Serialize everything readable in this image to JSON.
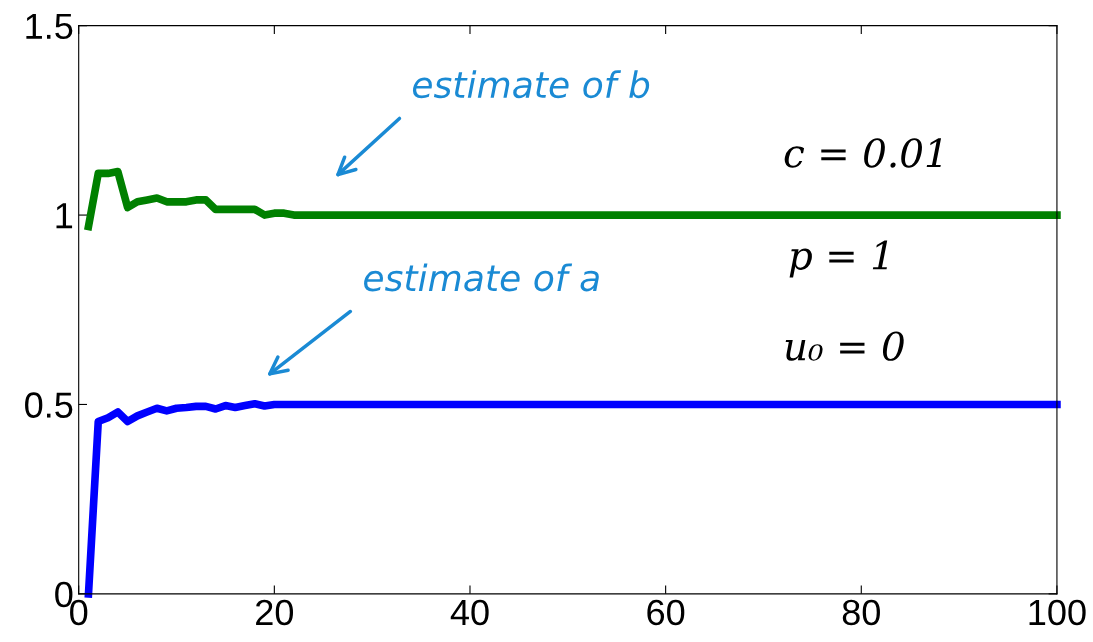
{
  "chart_data": {
    "type": "line",
    "series": [
      {
        "color": "#008000",
        "x": [
          1,
          2,
          3,
          4,
          5,
          6,
          7,
          8,
          9,
          10,
          11,
          12,
          13,
          14,
          15,
          16,
          17,
          18,
          19,
          20,
          21,
          22,
          100
        ],
        "values": [
          0.97,
          1.11,
          1.11,
          1.115,
          1.02,
          1.035,
          1.04,
          1.045,
          1.035,
          1.035,
          1.035,
          1.04,
          1.04,
          1.015,
          1.015,
          1.015,
          1.015,
          1.015,
          1.0,
          1.005,
          1.005,
          1.0,
          1.0
        ]
      },
      {
        "color": "#0000ff",
        "x": [
          1,
          2,
          3,
          4,
          5,
          6,
          7,
          8,
          9,
          10,
          11,
          12,
          13,
          14,
          15,
          16,
          17,
          18,
          19,
          20,
          100
        ],
        "values": [
          0.0,
          0.455,
          0.465,
          0.48,
          0.455,
          0.47,
          0.48,
          0.49,
          0.483,
          0.49,
          0.492,
          0.495,
          0.495,
          0.488,
          0.497,
          0.492,
          0.497,
          0.502,
          0.496,
          0.5,
          0.5
        ]
      }
    ],
    "xlim": [
      0,
      100
    ],
    "ylim": [
      0,
      1.5
    ],
    "xticks": [
      0,
      20,
      40,
      60,
      80,
      100
    ],
    "yticks": [
      0,
      0.5,
      1,
      1.5
    ],
    "grid": false,
    "legend": false,
    "marker": "none",
    "line_style": "solid",
    "annotations": [
      "estimate of b",
      "estimate of a",
      "c = 0.01",
      "p = 1",
      "u₀ = 0"
    ]
  }
}
